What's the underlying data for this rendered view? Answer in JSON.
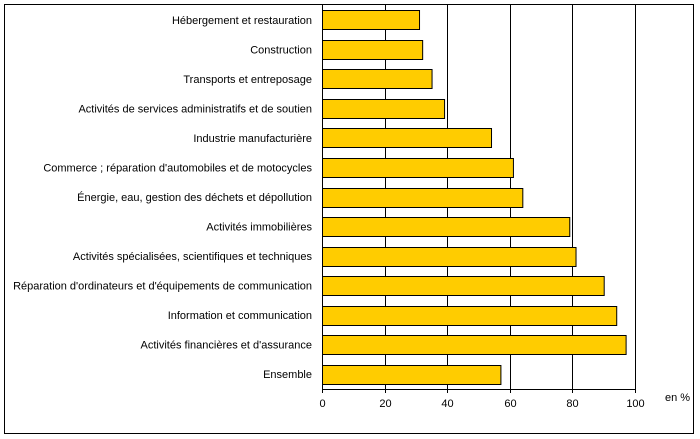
{
  "chart_data": {
    "type": "bar",
    "orientation": "horizontal",
    "categories": [
      "Hébergement et restauration",
      "Construction",
      "Transports et entreposage",
      "Activités de services administratifs et de soutien",
      "Industrie manufacturière",
      "Commerce ; réparation d'automobiles et de motocycles",
      "Énergie, eau, gestion des déchets et dépollution",
      "Activités immobilières",
      "Activités spécialisées, scientifiques et techniques",
      "Réparation d'ordinateurs et d'équipements de communication",
      "Information et communication",
      "Activités financières et d'assurance",
      "Ensemble"
    ],
    "values": [
      31,
      32,
      35,
      39,
      54,
      61,
      64,
      79,
      81,
      90,
      94,
      97,
      57
    ],
    "xlim": [
      0,
      100
    ],
    "xticks": [
      "0",
      "20",
      "40",
      "60",
      "80",
      "100"
    ],
    "unit_label": "en %",
    "grid": true,
    "bar_color": "#ffcc00",
    "bar_edge_color": "#000000"
  }
}
